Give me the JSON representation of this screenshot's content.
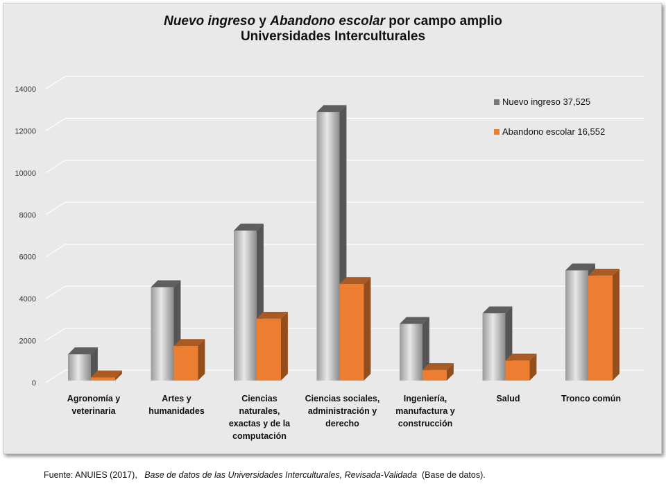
{
  "title": {
    "line1_part1": "Nuevo ingreso",
    "line1_connector": " y ",
    "line1_part2": "Abandono escolar",
    "line1_part3": " por campo amplio",
    "line2": "Universidades Interculturales"
  },
  "source": {
    "prefix": "Fuente: ANUIES (2017),",
    "italic": "Base de datos de las Universidades  Interculturales, Revisada-Validada",
    "suffix": "(Base de datos)."
  },
  "colors": {
    "nuevo_ingreso": "#8c8c8c",
    "abandono": "#ed7d31",
    "plot_background": "#e9e9e9",
    "gridline": "#ffffff"
  },
  "chart_data": {
    "type": "bar",
    "style": "3d-clustered-column",
    "categories": [
      [
        "Agronomía y",
        "veterinaria"
      ],
      [
        "Artes y",
        "humanidades"
      ],
      [
        "Ciencias",
        "naturales,",
        "exactas y de la",
        "computación"
      ],
      [
        "Ciencias sociales,",
        "administración y",
        "derecho"
      ],
      [
        "Ingeniería,",
        "manufactura y",
        "construcción"
      ],
      [
        "Salud"
      ],
      [
        "Tronco común"
      ]
    ],
    "series": [
      {
        "name": "Nuevo ingreso  37,525",
        "values": [
          1350,
          4550,
          7250,
          12900,
          2800,
          3300,
          5350
        ]
      },
      {
        "name": "Abandono escolar  16,552",
        "values": [
          250,
          1750,
          3050,
          4700,
          600,
          1050,
          5100
        ]
      }
    ],
    "y_ticks": [
      "0",
      "2000",
      "4000",
      "6000",
      "8000",
      "10000",
      "12000",
      "14000"
    ],
    "ylim": [
      0,
      14000
    ],
    "grid": true,
    "legend_position": "top-right"
  }
}
